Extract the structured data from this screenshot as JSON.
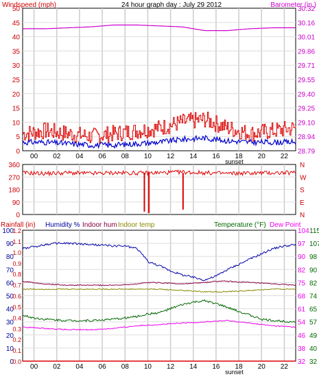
{
  "chart_data": [
    {
      "id": "wind_baro",
      "type": "line",
      "title": "24 hour graph day : July 29 2012",
      "ylabel_left": "Windspeed (mph)",
      "ylabel_right": "Barometer (in.)",
      "yticks_left": [
        "0",
        "5",
        "10",
        "15",
        "20",
        "25",
        "30",
        "35",
        "40",
        "45",
        "50"
      ],
      "yticks_right": [
        "28.79",
        "28.94",
        "29.10",
        "29.25",
        "29.40",
        "29.55",
        "29.71",
        "29.86",
        "30.01",
        "30.16",
        "30.32"
      ],
      "ylim_left": [
        0,
        50
      ],
      "ylim_right": [
        28.79,
        30.32
      ],
      "x_ticks": [
        "00",
        "02",
        "04",
        "06",
        "08",
        "10",
        "12",
        "14",
        "16",
        "18",
        "20",
        "22"
      ],
      "x_note": "sunset",
      "grid": true,
      "series": [
        {
          "name": "Barometer (in.)",
          "axis": "right",
          "color": "#cc00cc",
          "x": [
            0,
            2,
            4,
            6,
            8,
            10,
            12,
            14,
            16,
            18,
            20,
            22,
            24
          ],
          "y": [
            30.1,
            30.1,
            30.11,
            30.12,
            30.14,
            30.14,
            30.13,
            30.12,
            30.08,
            30.08,
            30.1,
            30.11,
            30.11
          ]
        },
        {
          "color": "#dd0000",
          "x": [
            0,
            2,
            4,
            6,
            8,
            10,
            12,
            14,
            16,
            18,
            20,
            22,
            24
          ],
          "y": [
            6,
            7,
            6,
            5,
            6,
            7,
            8,
            10,
            11,
            8,
            6,
            7,
            8
          ]
        },
        {
          "color": "#0000cc",
          "x": [
            0,
            2,
            4,
            6,
            8,
            10,
            12,
            14,
            16,
            18,
            20,
            22,
            24
          ],
          "y": [
            3,
            3,
            2.5,
            2,
            2,
            2.5,
            3,
            4,
            4.5,
            3.5,
            3,
            3,
            3
          ]
        }
      ]
    },
    {
      "id": "wind_dir",
      "type": "line",
      "yticks_left": [
        "0",
        "90",
        "180",
        "270",
        "360"
      ],
      "yticks_right": [
        "N",
        "E",
        "S",
        "W",
        "N"
      ],
      "ylim": [
        0,
        360
      ],
      "x_ticks": [],
      "grid": true,
      "series": [
        {
          "color": "#dd0000",
          "x": [
            0,
            2,
            4,
            6,
            8,
            10,
            12,
            14,
            16,
            18,
            20,
            22,
            24
          ],
          "y": [
            300,
            295,
            300,
            295,
            300,
            298,
            300,
            305,
            300,
            295,
            298,
            300,
            300
          ],
          "spikes": [
            {
              "x": 10.7,
              "y": 20
            },
            {
              "x": 11.1,
              "y": 10
            },
            {
              "x": 14.1,
              "y": 35
            }
          ]
        }
      ]
    },
    {
      "id": "rain_hum_temp",
      "type": "line",
      "labels_left": [
        "Rainfall (in)",
        "Humidity %",
        "Indoor hum",
        "Indoor temp"
      ],
      "labels_right": [
        "Temperature (°F)",
        "Dew Point"
      ],
      "rain_ticks": [
        "0.0",
        "0.1",
        "0.2",
        "0.3",
        "0.4",
        "0.5",
        "0.6",
        "0.7",
        "0.8",
        "0.9",
        "1.0",
        "1.1",
        "1.2"
      ],
      "humidity_ticks": [
        "0",
        "10",
        "20",
        "30",
        "40",
        "50",
        "60",
        "70",
        "80",
        "90",
        "100"
      ],
      "temp_ticks_a": [
        "32",
        "40",
        "49",
        "57",
        "65",
        "74",
        "82",
        "90",
        "98",
        "107",
        "115"
      ],
      "temp_ticks_b": [
        "32",
        "38",
        "46",
        "54",
        "61",
        "68",
        "75",
        "82",
        "90",
        "97",
        "104"
      ],
      "ylim_humidity": [
        0,
        100
      ],
      "x_ticks": [
        "00",
        "02",
        "04",
        "06",
        "08",
        "10",
        "12",
        "14",
        "16",
        "18",
        "20",
        "22"
      ],
      "x_note": "sunset",
      "grid": true,
      "series": [
        {
          "name": "Humidity %",
          "color": "#0000aa",
          "x": [
            0,
            2,
            3,
            4,
            6,
            8,
            9,
            10,
            10.5,
            11,
            12,
            13,
            14,
            15,
            16,
            17,
            18,
            20,
            22,
            23,
            24
          ],
          "y": [
            86,
            89,
            90,
            90,
            89,
            88,
            88,
            86,
            82,
            76,
            73,
            69,
            66,
            64,
            62,
            65,
            70,
            78,
            86,
            88,
            89
          ]
        },
        {
          "name": "Indoor hum",
          "color": "#880044",
          "x": [
            0,
            2,
            4,
            6,
            8,
            10,
            11,
            12,
            14,
            16,
            17,
            18,
            20,
            22,
            24
          ],
          "y": [
            61,
            59,
            58,
            58,
            58,
            59,
            60,
            60,
            59,
            60,
            61,
            61,
            60,
            59,
            58
          ]
        },
        {
          "name": "Indoor temp",
          "color": "#888800",
          "x": [
            0,
            2,
            4,
            6,
            8,
            10,
            12,
            14,
            16,
            18,
            20,
            22,
            24
          ],
          "y": [
            55,
            55,
            55,
            55,
            55,
            55,
            55,
            54,
            53,
            53,
            54,
            55,
            55
          ]
        },
        {
          "name": "Temperature (°F)",
          "color": "#006600",
          "x": [
            0,
            1,
            2,
            4,
            6,
            8,
            9,
            10,
            11,
            12,
            13,
            14,
            15,
            16,
            17,
            18,
            19,
            20,
            21,
            22,
            24
          ],
          "y": [
            35,
            33,
            32,
            31,
            31,
            32,
            33,
            34,
            36,
            37,
            40,
            43,
            45,
            46,
            44,
            41,
            38,
            35,
            32,
            31,
            30
          ]
        },
        {
          "name": "Dew Point",
          "color": "#ee00ee",
          "x": [
            0,
            2,
            4,
            6,
            8,
            10,
            12,
            14,
            16,
            18,
            20,
            22,
            24
          ],
          "y": [
            26,
            25,
            24,
            24,
            25,
            27,
            28,
            29,
            30,
            31,
            29,
            27,
            26
          ]
        },
        {
          "name": "Rainfall (in)",
          "color": "#dd0000",
          "x": [
            0,
            24
          ],
          "y": [
            0,
            0
          ]
        }
      ]
    }
  ],
  "colors": {
    "wind_text": "#cc0000",
    "baro_text": "#cc00cc",
    "humidity_text": "#000099",
    "indoor_hum_text": "#880044",
    "indoor_temp_text": "#888800",
    "temp_text": "#006600",
    "dew_text": "#ee00ee"
  }
}
